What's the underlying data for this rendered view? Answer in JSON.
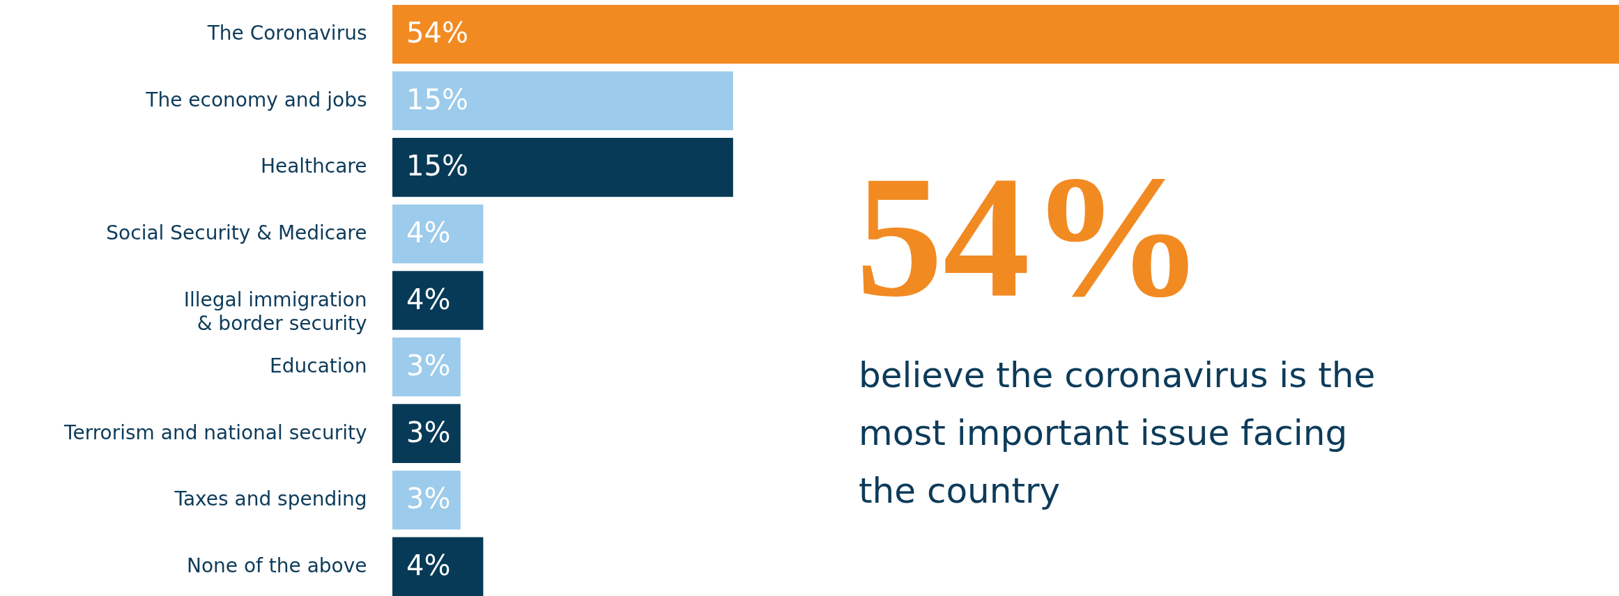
{
  "chart_data": {
    "type": "bar",
    "orientation": "horizontal",
    "categories": [
      "The Coronavirus",
      "The economy and jobs",
      "Healthcare",
      "Social Security & Medicare",
      "Illegal immigration & border security",
      "Education",
      "Terrorism and national security",
      "Taxes and spending",
      "None of the above"
    ],
    "values": [
      54,
      15,
      15,
      4,
      4,
      3,
      3,
      3,
      4
    ],
    "value_labels": [
      "54%",
      "15%",
      "15%",
      "4%",
      "4%",
      "3%",
      "3%",
      "3%",
      "4%"
    ],
    "colors": [
      "#f28a22",
      "#9ccbeb",
      "#073a57",
      "#9ccbeb",
      "#073a57",
      "#9ccbeb",
      "#073a57",
      "#9ccbeb",
      "#073a57"
    ],
    "annotations": [
      "54%",
      "believe the coronavirus is the most important issue facing the country"
    ]
  }
}
